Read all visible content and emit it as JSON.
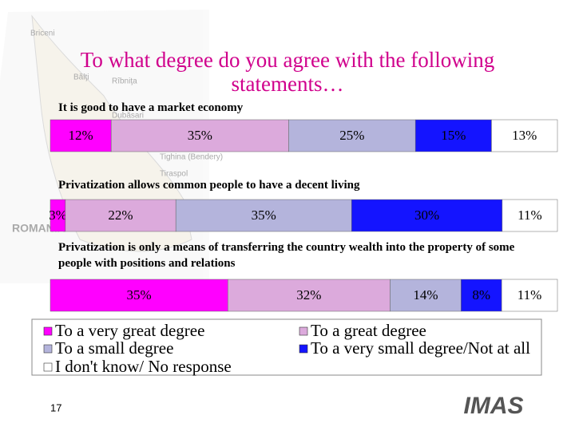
{
  "chart_data": {
    "type": "stacked-bar-horizontal",
    "title": "To what degree do you agree with the following statements…",
    "categories": [
      "It is good to have a market economy",
      "Privatization allows common people to have a decent living",
      "Privatization is only a means of transferring the country wealth into the property of some people with positions and relations"
    ],
    "series": [
      {
        "name": "To a very great degree",
        "color": "#ff00ff",
        "values": [
          12,
          3,
          35
        ],
        "value_labels": [
          "12%",
          "3%",
          "35%"
        ]
      },
      {
        "name": "To a great degree",
        "color": "#dcaadc",
        "values": [
          35,
          22,
          32
        ],
        "value_labels": [
          "35%",
          "22%",
          "32%"
        ]
      },
      {
        "name": "To a small degree",
        "color": "#b4b4dc",
        "values": [
          25,
          35,
          14
        ],
        "value_labels": [
          "25%",
          "35%",
          "14%"
        ]
      },
      {
        "name": "To a very small degree/Not at all",
        "color": "#1414ff",
        "values": [
          15,
          30,
          8
        ],
        "value_labels": [
          "15%",
          "30%",
          "8%"
        ]
      },
      {
        "name": "I don't know/ No response",
        "color": "#ffffff",
        "values": [
          13,
          11,
          11
        ],
        "value_labels": [
          "13%",
          "11%",
          "11%"
        ]
      }
    ]
  },
  "map_labels": [
    "Briceni",
    "Bălţi",
    "Rîbniţa",
    "Dubăsari",
    "Tighina (Bendery)",
    "Tiraspol",
    "ROMANIA"
  ],
  "page_number": "17",
  "logo": "IMAS"
}
